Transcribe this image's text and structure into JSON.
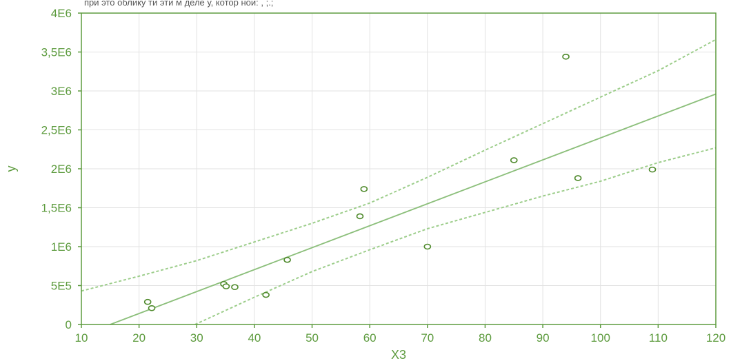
{
  "header": {
    "caption": "при это облику ти эти м деле у, котор нои: , ;.;"
  },
  "colors": {
    "axis": "#5d9b3e",
    "grid": "#e2e2e2",
    "fit_line": "#8cbf7b",
    "band_line": "#9ccd8a",
    "point": "#4f8a2c"
  },
  "chart_data": {
    "type": "scatter",
    "title": "",
    "xlabel": "X3",
    "ylabel": "y",
    "xlim": [
      10,
      120
    ],
    "ylim": [
      0,
      4000000
    ],
    "grid": true,
    "x_ticks": [
      10,
      20,
      30,
      40,
      50,
      60,
      70,
      80,
      90,
      100,
      110,
      120
    ],
    "x_tick_labels": [
      "10",
      "20",
      "30",
      "40",
      "50",
      "60",
      "70",
      "80",
      "90",
      "100",
      "110",
      "120"
    ],
    "y_ticks": [
      0,
      500000,
      1000000,
      1500000,
      2000000,
      2500000,
      3000000,
      3500000,
      4000000
    ],
    "y_tick_labels": [
      "0",
      "5E5",
      "1E6",
      "1,5E6",
      "2E6",
      "2,5E6",
      "3E6",
      "3,5E6",
      "4E6"
    ],
    "points": [
      {
        "x": 21.5,
        "y": 290000
      },
      {
        "x": 22.2,
        "y": 210000
      },
      {
        "x": 34.7,
        "y": 520000
      },
      {
        "x": 35.1,
        "y": 490000
      },
      {
        "x": 36.6,
        "y": 480000
      },
      {
        "x": 42.0,
        "y": 380000
      },
      {
        "x": 45.7,
        "y": 830000
      },
      {
        "x": 58.3,
        "y": 1390000
      },
      {
        "x": 59.0,
        "y": 1740000
      },
      {
        "x": 70.0,
        "y": 1000000
      },
      {
        "x": 85.0,
        "y": 2110000
      },
      {
        "x": 94.0,
        "y": 3440000
      },
      {
        "x": 96.1,
        "y": 1880000
      },
      {
        "x": 109.0,
        "y": 1990000
      }
    ],
    "fit_line": [
      {
        "x": 15.0,
        "y": 0
      },
      {
        "x": 120.0,
        "y": 2960000
      }
    ],
    "upper_band": [
      {
        "x": 10,
        "y": 430000
      },
      {
        "x": 20,
        "y": 620000
      },
      {
        "x": 30,
        "y": 820000
      },
      {
        "x": 40,
        "y": 1060000
      },
      {
        "x": 50,
        "y": 1300000
      },
      {
        "x": 60,
        "y": 1560000
      },
      {
        "x": 70,
        "y": 1890000
      },
      {
        "x": 80,
        "y": 2240000
      },
      {
        "x": 90,
        "y": 2580000
      },
      {
        "x": 100,
        "y": 2920000
      },
      {
        "x": 110,
        "y": 3260000
      },
      {
        "x": 120,
        "y": 3660000
      }
    ],
    "lower_band": [
      {
        "x": 29.7,
        "y": 0
      },
      {
        "x": 40,
        "y": 350000
      },
      {
        "x": 50,
        "y": 680000
      },
      {
        "x": 60,
        "y": 960000
      },
      {
        "x": 70,
        "y": 1230000
      },
      {
        "x": 80,
        "y": 1440000
      },
      {
        "x": 90,
        "y": 1650000
      },
      {
        "x": 100,
        "y": 1840000
      },
      {
        "x": 110,
        "y": 2080000
      },
      {
        "x": 120,
        "y": 2270000
      }
    ]
  }
}
